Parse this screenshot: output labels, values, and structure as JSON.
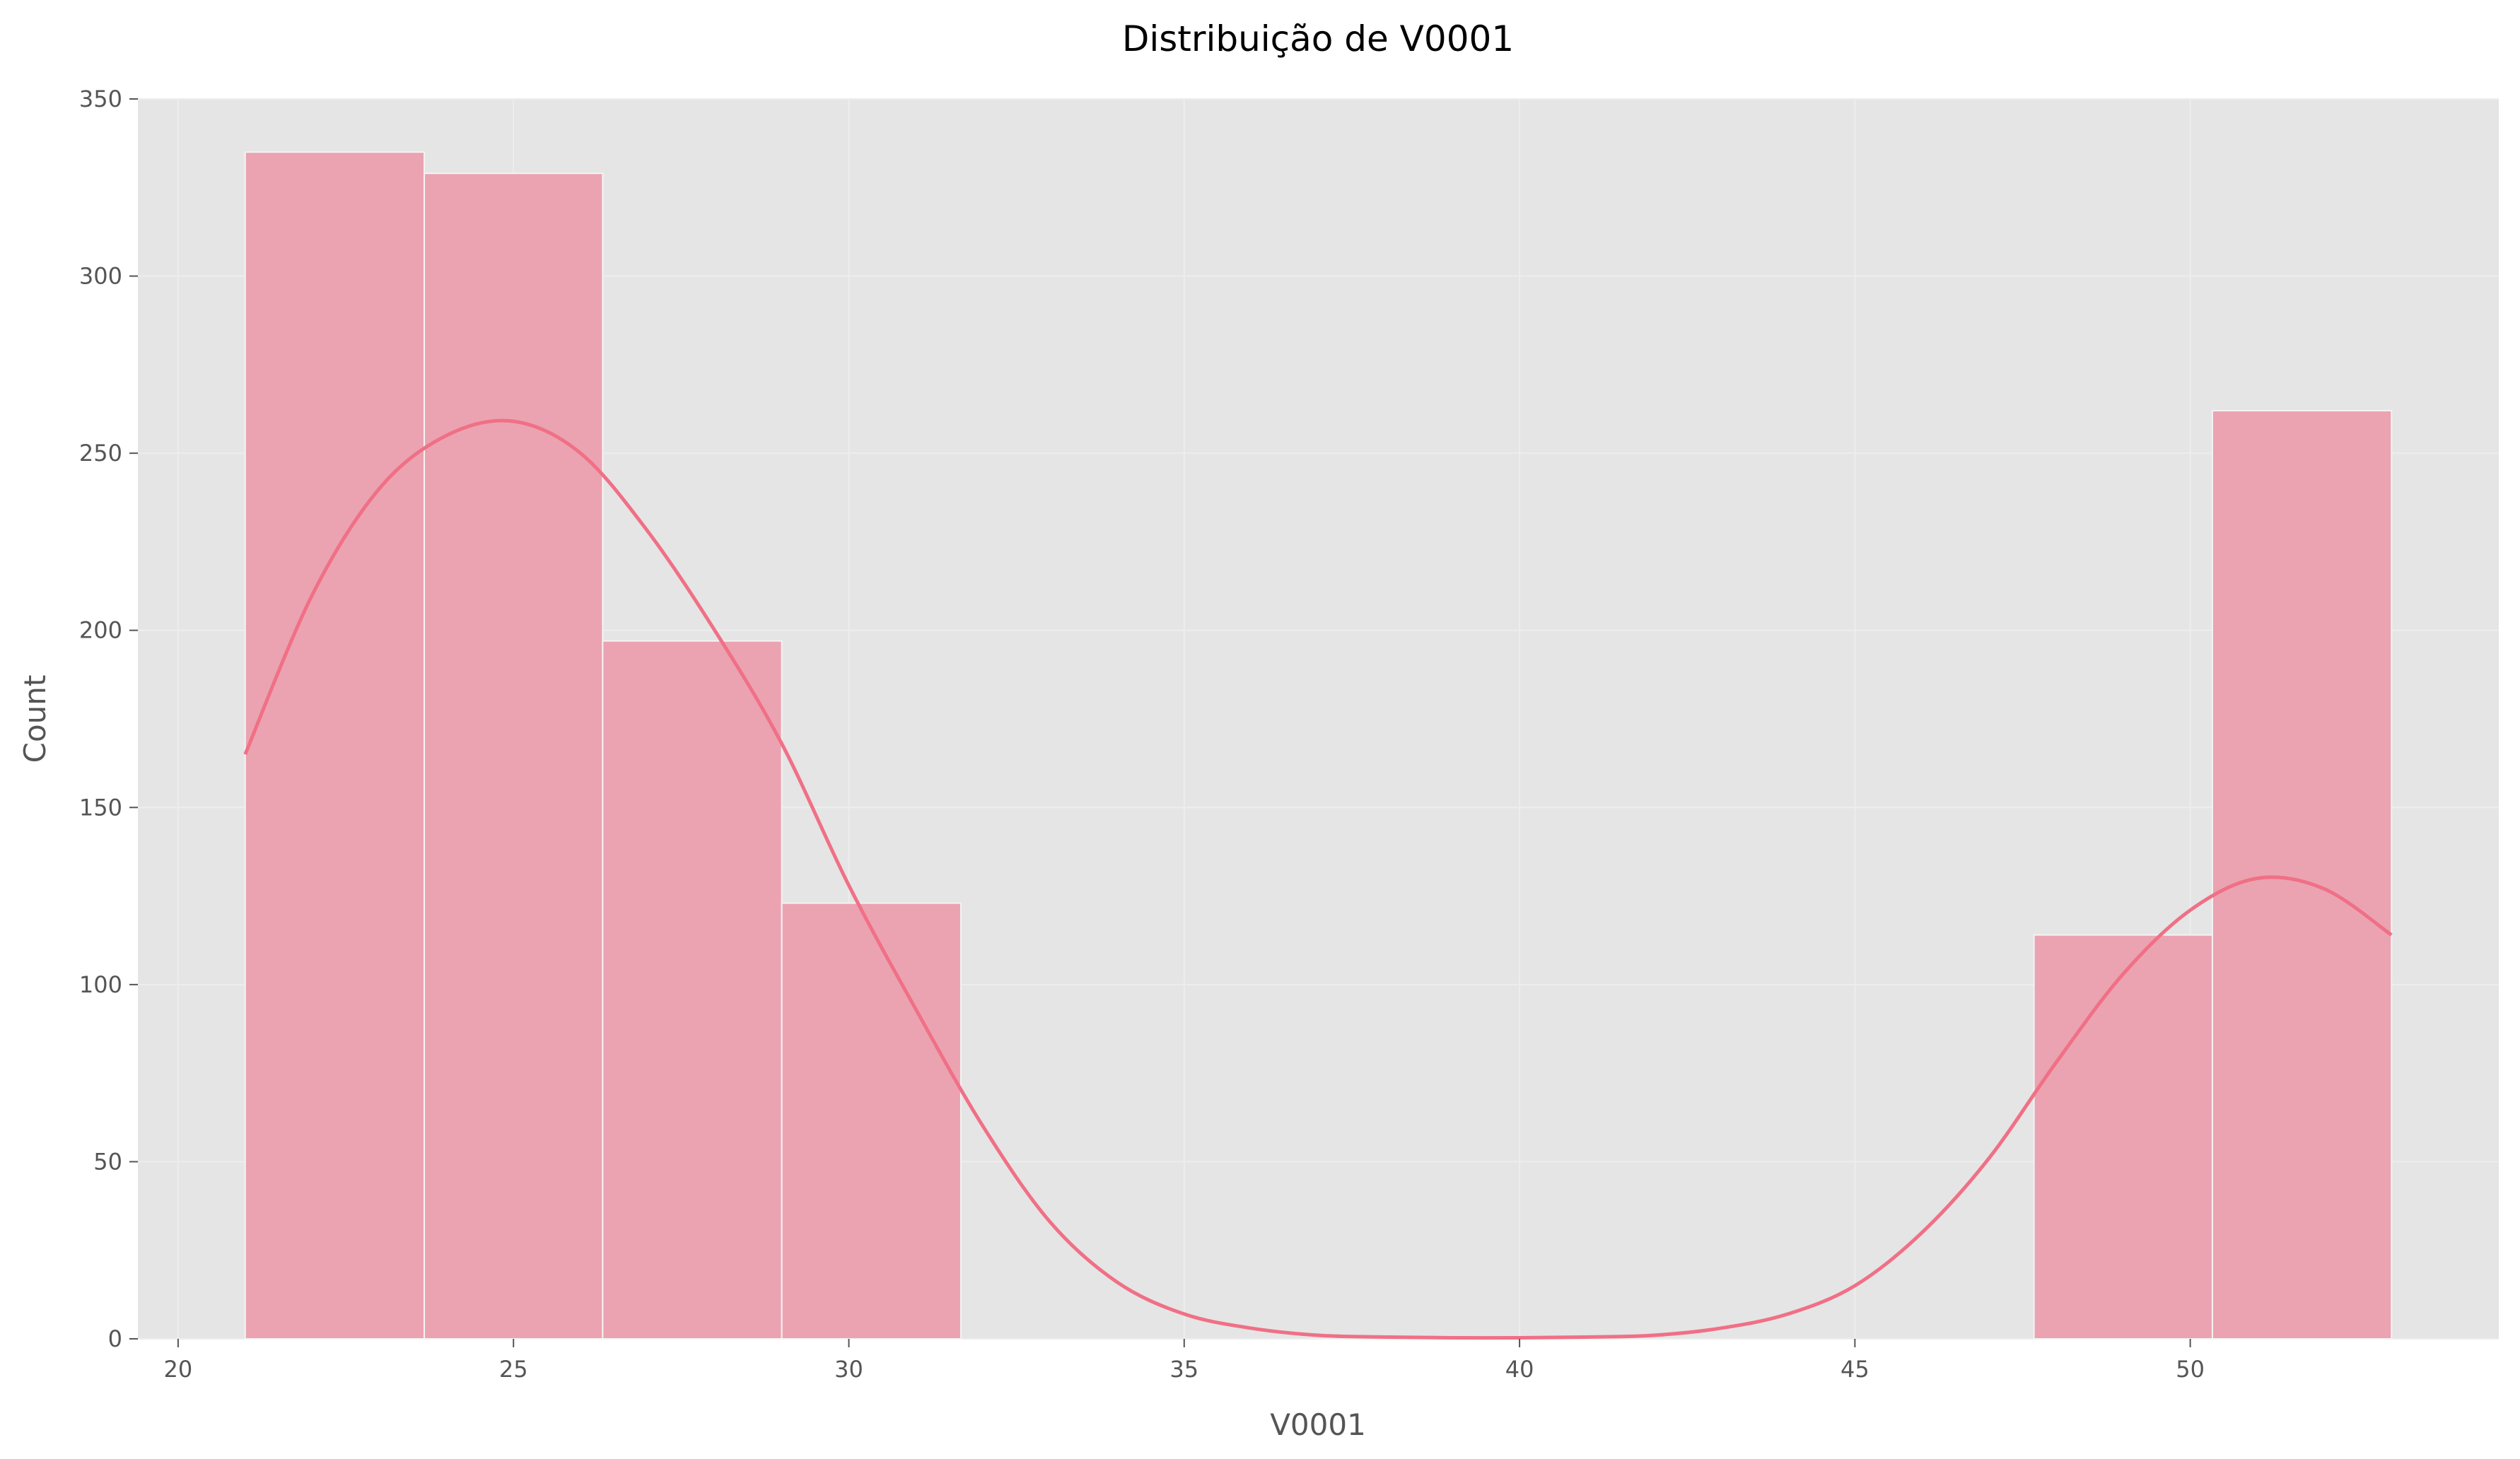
{
  "chart_data": {
    "type": "bar",
    "subtype": "histogram-with-kde",
    "title": "Distribuição de V0001",
    "xlabel": "V0001",
    "ylabel": "Count",
    "xlim": [
      19.4,
      54.6
    ],
    "ylim": [
      0,
      350
    ],
    "xticks": [
      20,
      25,
      30,
      35,
      40,
      45,
      50
    ],
    "yticks": [
      0,
      50,
      100,
      150,
      200,
      250,
      300,
      350
    ],
    "grid": true,
    "legend": "none",
    "bins": [
      {
        "x0": 21.0,
        "x1": 23.67,
        "count": 335
      },
      {
        "x0": 23.67,
        "x1": 26.33,
        "count": 329
      },
      {
        "x0": 26.33,
        "x1": 29.0,
        "count": 197
      },
      {
        "x0": 29.0,
        "x1": 31.67,
        "count": 123
      },
      {
        "x0": 31.67,
        "x1": 34.33,
        "count": 0
      },
      {
        "x0": 34.33,
        "x1": 37.0,
        "count": 0
      },
      {
        "x0": 37.0,
        "x1": 39.67,
        "count": 0
      },
      {
        "x0": 39.67,
        "x1": 42.33,
        "count": 0
      },
      {
        "x0": 42.33,
        "x1": 45.0,
        "count": 0
      },
      {
        "x0": 45.0,
        "x1": 47.67,
        "count": 0
      },
      {
        "x0": 47.67,
        "x1": 50.33,
        "count": 114
      },
      {
        "x0": 50.33,
        "x1": 53.0,
        "count": 262
      }
    ],
    "kde": {
      "x": [
        21,
        22,
        23,
        24,
        25,
        26,
        27,
        28,
        29,
        30,
        31,
        32,
        33,
        34,
        35,
        36,
        37,
        38,
        39,
        40,
        41,
        42,
        43,
        44,
        45,
        46,
        47,
        48,
        49,
        50,
        51,
        52,
        53
      ],
      "y": [
        165,
        210,
        240,
        255,
        259,
        250,
        228,
        200,
        168,
        128,
        93,
        60,
        33,
        16,
        7,
        3,
        1,
        0.5,
        0.3,
        0.3,
        0.5,
        1,
        3,
        7,
        15,
        30,
        51,
        78,
        103,
        121,
        130,
        127,
        114
      ]
    },
    "colors": {
      "bar_fill": "#eba3b1",
      "bar_edge": "#f3f3f3",
      "kde_line": "#f07086",
      "plot_background": "#e5e5e5",
      "grid": "#ededed",
      "tick_text": "#555555"
    }
  }
}
